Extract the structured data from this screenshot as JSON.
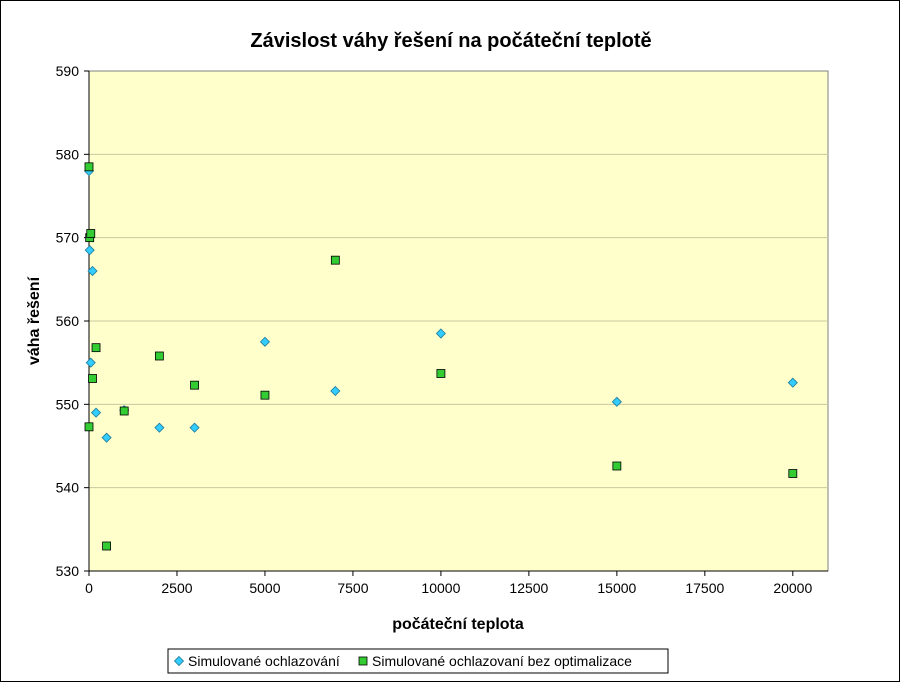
{
  "chart_data": {
    "type": "scatter",
    "title": "Závislost váhy řešení na počáteční teplotě",
    "xlabel": "počáteční teplota",
    "ylabel": "váha řešení",
    "xlim": [
      0,
      21000
    ],
    "ylim": [
      530,
      590
    ],
    "x_ticks": [
      0,
      2500,
      5000,
      7500,
      10000,
      12500,
      15000,
      17500,
      20000
    ],
    "y_ticks": [
      530,
      540,
      550,
      560,
      570,
      580,
      590
    ],
    "grid": "horizontal",
    "plot_background": "#ffffcc",
    "legend_position": "bottom",
    "series": [
      {
        "name": "Simulované ochlazování",
        "marker": "diamond",
        "color": "#33ccff",
        "points": [
          [
            0,
            578
          ],
          [
            20,
            568.5
          ],
          [
            50,
            555
          ],
          [
            100,
            566
          ],
          [
            200,
            549
          ],
          [
            500,
            546
          ],
          [
            1000,
            549.3
          ],
          [
            2000,
            547.2
          ],
          [
            3000,
            547.2
          ],
          [
            5000,
            557.5
          ],
          [
            7000,
            551.6
          ],
          [
            10000,
            558.5
          ],
          [
            15000,
            550.3
          ],
          [
            20000,
            552.6
          ]
        ]
      },
      {
        "name": "Simulované ochlazovaní bez optimalizace",
        "marker": "square",
        "color": "#33cc33",
        "points": [
          [
            0,
            578.5
          ],
          [
            0,
            547.3
          ],
          [
            20,
            570
          ],
          [
            50,
            570.5
          ],
          [
            100,
            553.1
          ],
          [
            200,
            556.8
          ],
          [
            500,
            533
          ],
          [
            1000,
            549.2
          ],
          [
            2000,
            555.8
          ],
          [
            3000,
            552.3
          ],
          [
            5000,
            551.1
          ],
          [
            7000,
            567.3
          ],
          [
            10000,
            553.7
          ],
          [
            15000,
            542.6
          ],
          [
            20000,
            541.7
          ]
        ]
      }
    ]
  }
}
